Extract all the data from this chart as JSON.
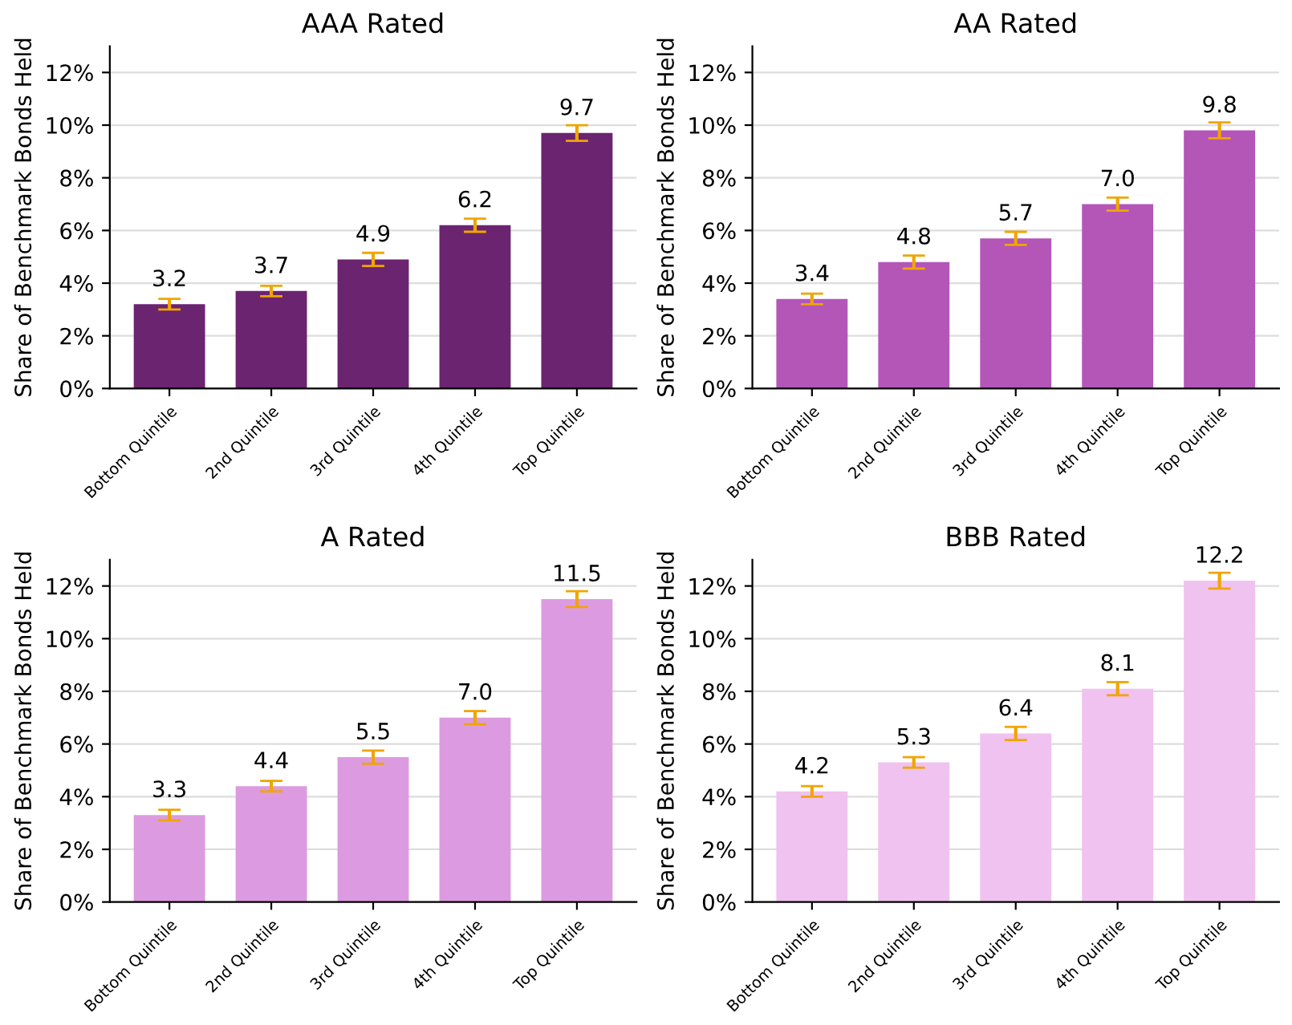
{
  "chart_data": [
    {
      "type": "bar",
      "title": "AAA Rated",
      "ylabel": "Share of Benchmark Bonds Held",
      "categories": [
        "Bottom Quintile",
        "2nd Quintile",
        "3rd Quintile",
        "4th Quintile",
        "Top Quintile"
      ],
      "values": [
        3.2,
        3.7,
        4.9,
        6.2,
        9.7
      ],
      "value_labels": [
        "3.2",
        "3.7",
        "4.9",
        "6.2",
        "9.7"
      ],
      "errors": [
        0.2,
        0.2,
        0.25,
        0.25,
        0.3
      ],
      "color": "#6b2470",
      "ylim": [
        0,
        13
      ],
      "yticks": [
        {
          "value": 0,
          "label": "0%"
        },
        {
          "value": 2,
          "label": "2%"
        },
        {
          "value": 4,
          "label": "4%"
        },
        {
          "value": 6,
          "label": "6%"
        },
        {
          "value": 8,
          "label": "8%"
        },
        {
          "value": 10,
          "label": "10%"
        },
        {
          "value": 12,
          "label": "12%"
        }
      ],
      "grid": "y"
    },
    {
      "type": "bar",
      "title": "AA Rated",
      "ylabel": "Share of Benchmark Bonds Held",
      "categories": [
        "Bottom Quintile",
        "2nd Quintile",
        "3rd Quintile",
        "4th Quintile",
        "Top Quintile"
      ],
      "values": [
        3.4,
        4.8,
        5.7,
        7.0,
        9.8
      ],
      "value_labels": [
        "3.4",
        "4.8",
        "5.7",
        "7.0",
        "9.8"
      ],
      "errors": [
        0.2,
        0.25,
        0.25,
        0.25,
        0.3
      ],
      "color": "#b356b8",
      "ylim": [
        0,
        13
      ],
      "yticks": [
        {
          "value": 0,
          "label": "0%"
        },
        {
          "value": 2,
          "label": "2%"
        },
        {
          "value": 4,
          "label": "4%"
        },
        {
          "value": 6,
          "label": "6%"
        },
        {
          "value": 8,
          "label": "8%"
        },
        {
          "value": 10,
          "label": "10%"
        },
        {
          "value": 12,
          "label": "12%"
        }
      ],
      "grid": "y"
    },
    {
      "type": "bar",
      "title": "A Rated",
      "ylabel": "Share of Benchmark Bonds Held",
      "categories": [
        "Bottom Quintile",
        "2nd Quintile",
        "3rd Quintile",
        "4th Quintile",
        "Top Quintile"
      ],
      "values": [
        3.3,
        4.4,
        5.5,
        7.0,
        11.5
      ],
      "value_labels": [
        "3.3",
        "4.4",
        "5.5",
        "7.0",
        "11.5"
      ],
      "errors": [
        0.2,
        0.2,
        0.25,
        0.25,
        0.3
      ],
      "color": "#dc9be0",
      "ylim": [
        0,
        13
      ],
      "yticks": [
        {
          "value": 0,
          "label": "0%"
        },
        {
          "value": 2,
          "label": "2%"
        },
        {
          "value": 4,
          "label": "4%"
        },
        {
          "value": 6,
          "label": "6%"
        },
        {
          "value": 8,
          "label": "8%"
        },
        {
          "value": 10,
          "label": "10%"
        },
        {
          "value": 12,
          "label": "12%"
        }
      ],
      "grid": "y"
    },
    {
      "type": "bar",
      "title": "BBB Rated",
      "ylabel": "Share of Benchmark Bonds Held",
      "categories": [
        "Bottom Quintile",
        "2nd Quintile",
        "3rd Quintile",
        "4th Quintile",
        "Top Quintile"
      ],
      "values": [
        4.2,
        5.3,
        6.4,
        8.1,
        12.2
      ],
      "value_labels": [
        "4.2",
        "5.3",
        "6.4",
        "8.1",
        "12.2"
      ],
      "errors": [
        0.2,
        0.2,
        0.25,
        0.25,
        0.3
      ],
      "color": "#f0c2f0",
      "ylim": [
        0,
        13
      ],
      "yticks": [
        {
          "value": 0,
          "label": "0%"
        },
        {
          "value": 2,
          "label": "2%"
        },
        {
          "value": 4,
          "label": "4%"
        },
        {
          "value": 6,
          "label": "6%"
        },
        {
          "value": 8,
          "label": "8%"
        },
        {
          "value": 10,
          "label": "10%"
        },
        {
          "value": 12,
          "label": "12%"
        }
      ],
      "grid": "y"
    }
  ]
}
